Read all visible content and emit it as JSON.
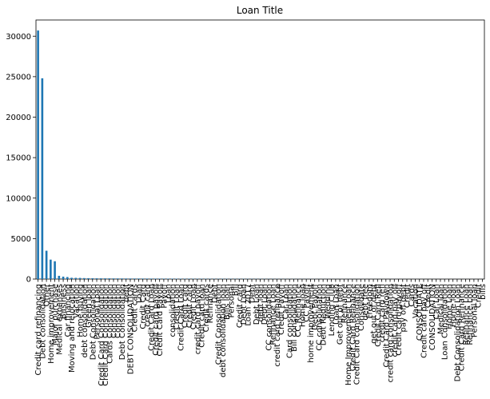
{
  "chart_data": {
    "type": "bar",
    "title": "Loan Title",
    "xlabel": "",
    "ylabel": "",
    "ylim": [
      0,
      32000
    ],
    "yticks": [
      0,
      5000,
      10000,
      15000,
      20000,
      25000,
      30000
    ],
    "bar_color": "#1f77b4",
    "grid": false,
    "categories": [
      "Credit card refinancing",
      "Debt consolidation",
      "Other",
      "Home improvement",
      "Major purchase",
      "Medical expenses",
      "Business",
      "Car financing",
      "Moving and relocation",
      "Vacation",
      "Home buying",
      "debt consolidation",
      "Green loan",
      "Debt Consolidation",
      "Personal Loan",
      "Credit Card Consolidation",
      "Credit Card Consolidation",
      "Cards Consolidation",
      "Consolidation",
      "Consolidation",
      "Debt Consolidation",
      "debt",
      "DEBT CONSOLIDATION",
      "Credit cards",
      "Loan",
      "Credit Card",
      "credit card",
      "Credit Card Loan",
      "Credit card payoff",
      "Credit Card Payoff",
      "Payoff",
      "Loan",
      "consolidation",
      "Credit Loan",
      "Credit Card Loan",
      "Credit card",
      "Credit card",
      "Credit Loan",
      "credit card payoff",
      "Credit card loan",
      "Credit cards",
      "Refinance",
      "Debt",
      "Credit Consolidation",
      "debt consolidation loan",
      "Bills loan",
      "Personal",
      "Bill",
      "Credit card",
      "Debt Loan",
      "Loan 2017",
      "Debt",
      "Debt Loan",
      "debt loan",
      "Debt Loan",
      "CC consolidation",
      "Refinance Loan",
      "credit card refinance",
      "Credit Payoff",
      "Car Loan",
      "Card consolidation",
      "Bill consolidation",
      "CC Refinance",
      "Home loan",
      "CC Payoff",
      "home improvement",
      "Debt Payoff",
      "CC consolidation",
      "Debt Reduction",
      "Wedding",
      "Lending Club",
      "Loan Loan",
      "Get out of debt",
      "Refinance",
      "Home Improvement Loan",
      "Credit Card Refinance",
      "Credit Card consolidation",
      "Consolidate",
      "debt free",
      "Freedom",
      "get out of debt",
      "Credit Card Refi",
      "credit card refi",
      "Credit Card Paydown",
      "credit card consolidation",
      "credit card pay off",
      "Credit card payoff",
      "pay off debt",
      "Credit",
      "Cards",
      "Vacation",
      "CONSOLIDATE",
      "Credit card pay off",
      "Credit",
      "CONSOLIDATION",
      "Car Loan",
      "Medical loan",
      "Loan Consolidation",
      "Home Loan",
      "Home loan",
      "Debt Consolidation Loan",
      "Credit Card Refinance",
      "Refinance Loan",
      "Refinance Loan",
      "Personal loan",
      "Credit",
      "bills"
    ],
    "values": [
      30700,
      24800,
      3500,
      2400,
      2200,
      400,
      300,
      250,
      160,
      150,
      140,
      120,
      110,
      100,
      95,
      90,
      88,
      85,
      80,
      78,
      75,
      72,
      70,
      68,
      66,
      64,
      62,
      60,
      58,
      56,
      54,
      52,
      50,
      48,
      46,
      44,
      42,
      40,
      39,
      38,
      37,
      36,
      35,
      34,
      33,
      32,
      31,
      30,
      29,
      28,
      27,
      26,
      25,
      24,
      23,
      22,
      21,
      20,
      19,
      18,
      17,
      16,
      15,
      14,
      13,
      12,
      12,
      11,
      11,
      10,
      10,
      9,
      9,
      8,
      8,
      8,
      7,
      7,
      7,
      6,
      6,
      6,
      6,
      5,
      5,
      5,
      5,
      5,
      4,
      4,
      4,
      4,
      4,
      4,
      3,
      3,
      3,
      3,
      3,
      3,
      3,
      2,
      2,
      2,
      2,
      2,
      2
    ]
  }
}
